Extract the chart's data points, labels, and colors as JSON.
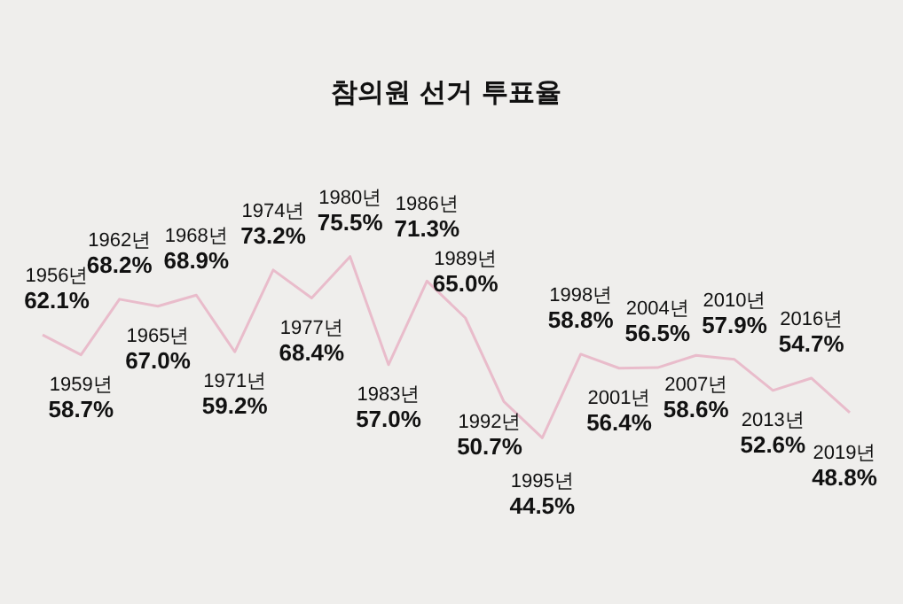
{
  "chart_data": {
    "type": "line",
    "title": "참의원 선거 투표율",
    "categories": [
      "1956년",
      "1959년",
      "1962년",
      "1965년",
      "1968년",
      "1971년",
      "1974년",
      "1977년",
      "1980년",
      "1983년",
      "1986년",
      "1989년",
      "1992년",
      "1995년",
      "1998년",
      "2001년",
      "2004년",
      "2007년",
      "2010년",
      "2013년",
      "2016년",
      "2019년"
    ],
    "values": [
      62.1,
      58.7,
      68.2,
      67.0,
      68.9,
      59.2,
      73.2,
      68.4,
      75.5,
      57.0,
      71.3,
      65.0,
      50.7,
      44.5,
      58.8,
      56.4,
      56.5,
      58.6,
      57.9,
      52.6,
      54.7,
      48.8
    ],
    "value_labels": [
      "62.1%",
      "58.7%",
      "68.2%",
      "67.0%",
      "68.9%",
      "59.2%",
      "73.2%",
      "68.4%",
      "75.5%",
      "57.0%",
      "71.3%",
      "65.0%",
      "50.7%",
      "44.5%",
      "58.8%",
      "56.4%",
      "56.5%",
      "58.6%",
      "57.9%",
      "52.6%",
      "54.7%",
      "48.8%"
    ],
    "color": "#e9bccb",
    "marker": "none",
    "legend": false,
    "grid": false,
    "tick_labels": false
  }
}
